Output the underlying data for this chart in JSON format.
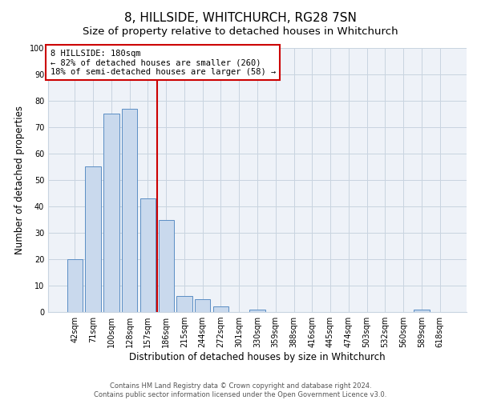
{
  "title": "8, HILLSIDE, WHITCHURCH, RG28 7SN",
  "subtitle": "Size of property relative to detached houses in Whitchurch",
  "xlabel": "Distribution of detached houses by size in Whitchurch",
  "ylabel": "Number of detached properties",
  "bar_labels": [
    "42sqm",
    "71sqm",
    "100sqm",
    "128sqm",
    "157sqm",
    "186sqm",
    "215sqm",
    "244sqm",
    "272sqm",
    "301sqm",
    "330sqm",
    "359sqm",
    "388sqm",
    "416sqm",
    "445sqm",
    "474sqm",
    "503sqm",
    "532sqm",
    "560sqm",
    "589sqm",
    "618sqm"
  ],
  "bar_values": [
    20,
    55,
    75,
    77,
    43,
    35,
    6,
    5,
    2,
    0,
    1,
    0,
    0,
    0,
    0,
    0,
    0,
    0,
    0,
    1,
    0
  ],
  "bar_color": "#c9d9ed",
  "bar_edge_color": "#5b8ec4",
  "vline_color": "#cc0000",
  "annotation_title": "8 HILLSIDE: 180sqm",
  "annotation_line1": "← 82% of detached houses are smaller (260)",
  "annotation_line2": "18% of semi-detached houses are larger (58) →",
  "annotation_box_edge": "#cc0000",
  "ylim": [
    0,
    100
  ],
  "yticks": [
    0,
    10,
    20,
    30,
    40,
    50,
    60,
    70,
    80,
    90,
    100
  ],
  "footer_line1": "Contains HM Land Registry data © Crown copyright and database right 2024.",
  "footer_line2": "Contains public sector information licensed under the Open Government Licence v3.0.",
  "bg_color": "#eef2f8",
  "grid_color": "#c8d4e0",
  "title_fontsize": 11,
  "subtitle_fontsize": 9.5,
  "tick_fontsize": 7,
  "axis_label_fontsize": 8.5,
  "footer_fontsize": 6,
  "annotation_fontsize": 7.5
}
